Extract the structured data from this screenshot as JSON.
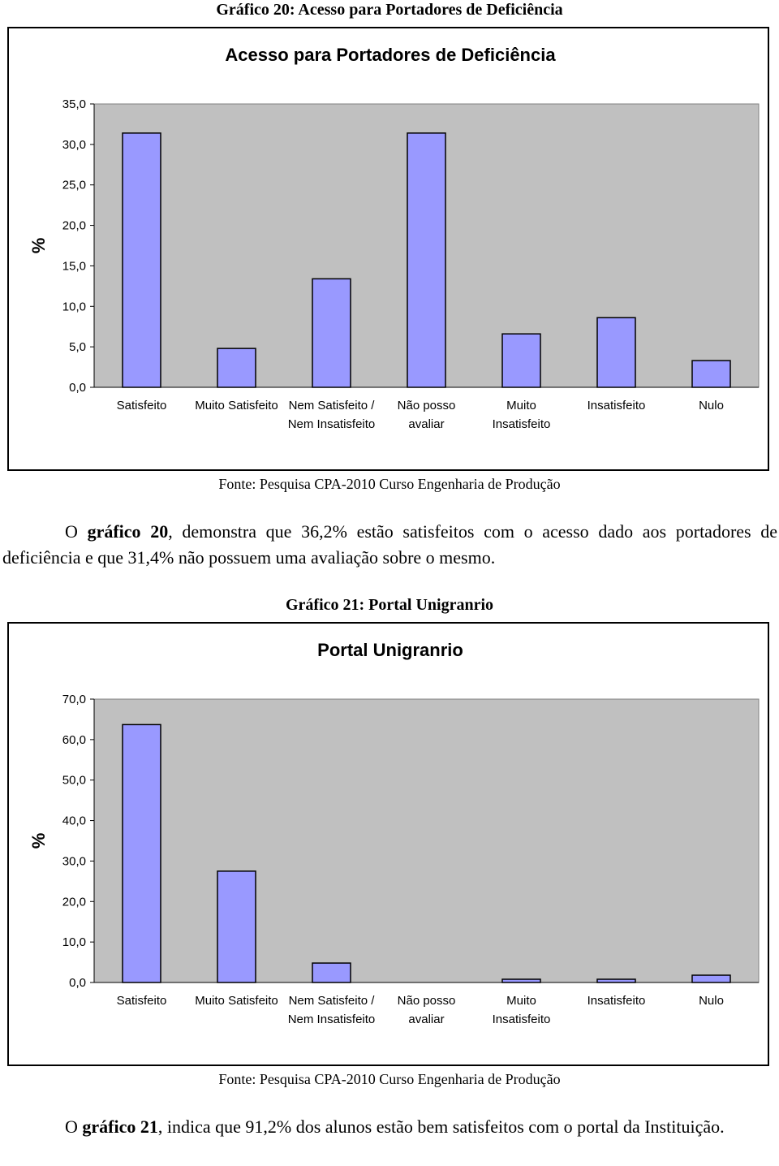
{
  "captions": [
    "Gráfico 20: Acesso para Portadores de Deficiência",
    "Gráfico 21: Portal Unigranrio"
  ],
  "sources": [
    "Fonte: Pesquisa CPA-2010 Curso Engenharia de Produção",
    "Fonte: Pesquisa CPA-2010 Curso Engenharia de Produção"
  ],
  "paragraphs": [
    {
      "pre": "O",
      "bold": "gráfico 20",
      "post": ", demonstra que 36,2% estão satisfeitos com o acesso dado aos portadores de deficiência e que 31,4% não possuem uma avaliação sobre o mesmo."
    },
    {
      "pre": "O",
      "bold": "gráfico 21",
      "post": ", indica que 91,2% dos alunos estão bem satisfeitos com o portal da Instituição."
    }
  ],
  "chart_data": [
    {
      "type": "bar",
      "title": "Acesso para Portadores de Deficiência",
      "ylabel": "%",
      "categories": [
        "Satisfeito",
        "Muito Satisfeito",
        "Nem Satisfeito / Nem Insatisfeito",
        "Não posso avaliar",
        "Muito Insatisfeito",
        "Insatisfeito",
        "Nulo"
      ],
      "values": [
        31.4,
        4.8,
        13.4,
        31.4,
        6.6,
        8.6,
        3.3
      ],
      "color": "#9999ff",
      "background": "#c0c0c0",
      "ylim": [
        0,
        35
      ],
      "yticks": [
        {
          "value": 0,
          "label": "0,0"
        },
        {
          "value": 5,
          "label": "5,0"
        },
        {
          "value": 10,
          "label": "10,0"
        },
        {
          "value": 15,
          "label": "15,0"
        },
        {
          "value": 20,
          "label": "20,0"
        },
        {
          "value": 25,
          "label": "25,0"
        },
        {
          "value": 30,
          "label": "30,0"
        },
        {
          "value": 35,
          "label": "35,0"
        }
      ]
    },
    {
      "type": "bar",
      "title": "Portal Unigranrio",
      "ylabel": "%",
      "categories": [
        "Satisfeito",
        "Muito Satisfeito",
        "Nem Satisfeito / Nem Insatisfeito",
        "Não posso avaliar",
        "Muito Insatisfeito",
        "Insatisfeito",
        "Nulo"
      ],
      "values": [
        63.7,
        27.5,
        4.8,
        0,
        0.8,
        0.8,
        1.8
      ],
      "color": "#9999ff",
      "background": "#c0c0c0",
      "ylim": [
        0,
        70
      ],
      "yticks": [
        {
          "value": 0,
          "label": "0,0"
        },
        {
          "value": 10,
          "label": "10,0"
        },
        {
          "value": 20,
          "label": "20,0"
        },
        {
          "value": 30,
          "label": "30,0"
        },
        {
          "value": 40,
          "label": "40,0"
        },
        {
          "value": 50,
          "label": "50,0"
        },
        {
          "value": 60,
          "label": "60,0"
        },
        {
          "value": 70,
          "label": "70,0"
        }
      ]
    }
  ]
}
